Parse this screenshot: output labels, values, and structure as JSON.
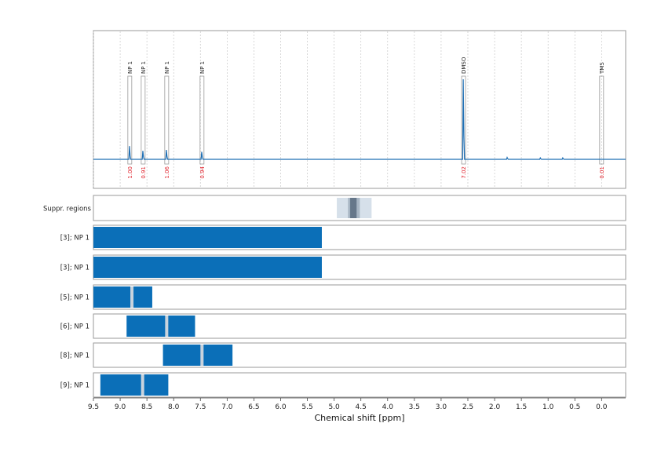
{
  "colors": {
    "spectrum": "#1f6fb4",
    "bar": "#0b6fb8",
    "integral_text": "#e0202a",
    "panel_border": "#9a9a9a",
    "grid": "#c8c8c8",
    "suppr_light": "#d6e0ea",
    "suppr_mid": "#a8b6c4",
    "suppr_dark": "#66778a",
    "divider": "#c9d3dd"
  },
  "chart_data": {
    "type": "line",
    "xlabel": "Chemical shift [ppm]",
    "xlim": [
      9.5,
      -0.45
    ],
    "xticks": [
      "9.5",
      "9.0",
      "8.5",
      "8.0",
      "7.5",
      "7.0",
      "6.5",
      "6.0",
      "5.5",
      "5.0",
      "4.5",
      "4.0",
      "3.5",
      "3.0",
      "2.5",
      "2.0",
      "1.5",
      "1.0",
      "0.5",
      "0.0"
    ],
    "grid": true,
    "spectrum": {
      "baseline": 0,
      "peaks": [
        {
          "ppm": 8.82,
          "height": 0.14
        },
        {
          "ppm": 8.57,
          "height": 0.09
        },
        {
          "ppm": 8.13,
          "height": 0.1
        },
        {
          "ppm": 7.47,
          "height": 0.08
        },
        {
          "ppm": 2.58,
          "height": 0.85
        },
        {
          "ppm": 1.76,
          "height": 0.02
        },
        {
          "ppm": 1.14,
          "height": 0.015
        },
        {
          "ppm": 0.72,
          "height": 0.015
        }
      ]
    },
    "annotations": [
      {
        "label": "NP 1",
        "ppm": 8.82,
        "integral": "1.00"
      },
      {
        "label": "NP 1",
        "ppm": 8.57,
        "integral": "0.91"
      },
      {
        "label": "NP 1",
        "ppm": 8.13,
        "integral": "1.06"
      },
      {
        "label": "NP 1",
        "ppm": 7.47,
        "integral": "0.94"
      },
      {
        "label": "DMSO",
        "ppm": 2.58,
        "integral": "7.02"
      },
      {
        "label": "TMS",
        "ppm": 0.0,
        "integral": "0.01"
      }
    ],
    "suppressed_region": {
      "label": "Suppr. regions",
      "outer": [
        4.95,
        4.3
      ],
      "mid": [
        4.74,
        4.52
      ],
      "core": [
        4.7,
        4.58
      ]
    },
    "rows": [
      {
        "label": "[3]; NP 1",
        "range": [
          9.5,
          5.23
        ],
        "markers": []
      },
      {
        "label": "[3]; NP 1",
        "range": [
          9.5,
          5.23
        ],
        "markers": []
      },
      {
        "label": "[5]; NP 1",
        "range": [
          9.5,
          8.4
        ],
        "markers": [
          8.78
        ]
      },
      {
        "label": "[6]; NP 1",
        "range": [
          8.88,
          7.6
        ],
        "markers": [
          8.13
        ]
      },
      {
        "label": "[8]; NP 1",
        "range": [
          8.2,
          6.9
        ],
        "markers": [
          7.47
        ]
      },
      {
        "label": "[9]; NP 1",
        "range": [
          9.37,
          8.1
        ],
        "markers": [
          8.58
        ]
      }
    ]
  }
}
